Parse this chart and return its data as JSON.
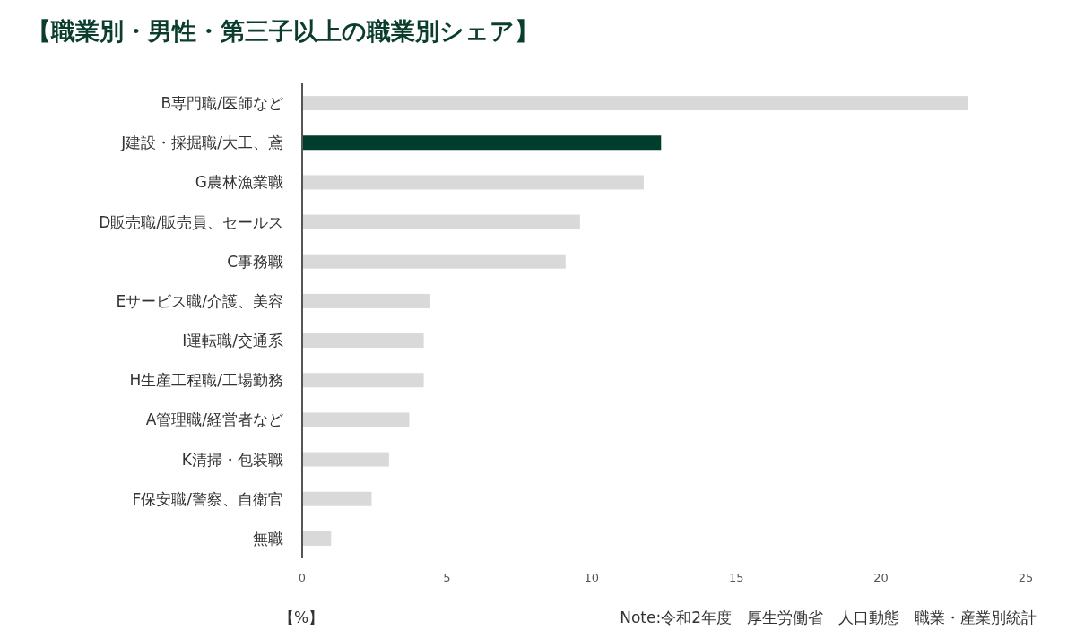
{
  "chart_data": {
    "type": "bar",
    "orientation": "horizontal",
    "title": "【職業別・男性・第三子以上の職業別シェア】",
    "categories": [
      "B専門職/医師など",
      "J建設・採掘職/大工、鳶",
      "G農林漁業職",
      "D販売職/販売員、セールス",
      "C事務職",
      "Eサービス職/介護、美容",
      "I運転職/交通系",
      "H生産工程職/工場勤務",
      "A管理職/経営者など",
      "K清掃・包装職",
      "F保安職/警察、自衛官",
      "無職"
    ],
    "values": [
      23.0,
      12.4,
      11.8,
      9.6,
      9.1,
      4.4,
      4.2,
      4.2,
      3.7,
      3.0,
      2.4,
      1.0
    ],
    "colors": [
      "#d9d9d9",
      "#003d2c",
      "#d9d9d9",
      "#d9d9d9",
      "#d9d9d9",
      "#d9d9d9",
      "#d9d9d9",
      "#d9d9d9",
      "#d9d9d9",
      "#d9d9d9",
      "#d9d9d9",
      "#d9d9d9"
    ],
    "xlim": [
      0,
      25
    ],
    "xticks": [
      0,
      5,
      10,
      15,
      20,
      25
    ],
    "xlabel": "【%】",
    "annotations": [
      "Note:令和2年度　厚生労働省　人口動態　職業・産業別統計"
    ]
  }
}
